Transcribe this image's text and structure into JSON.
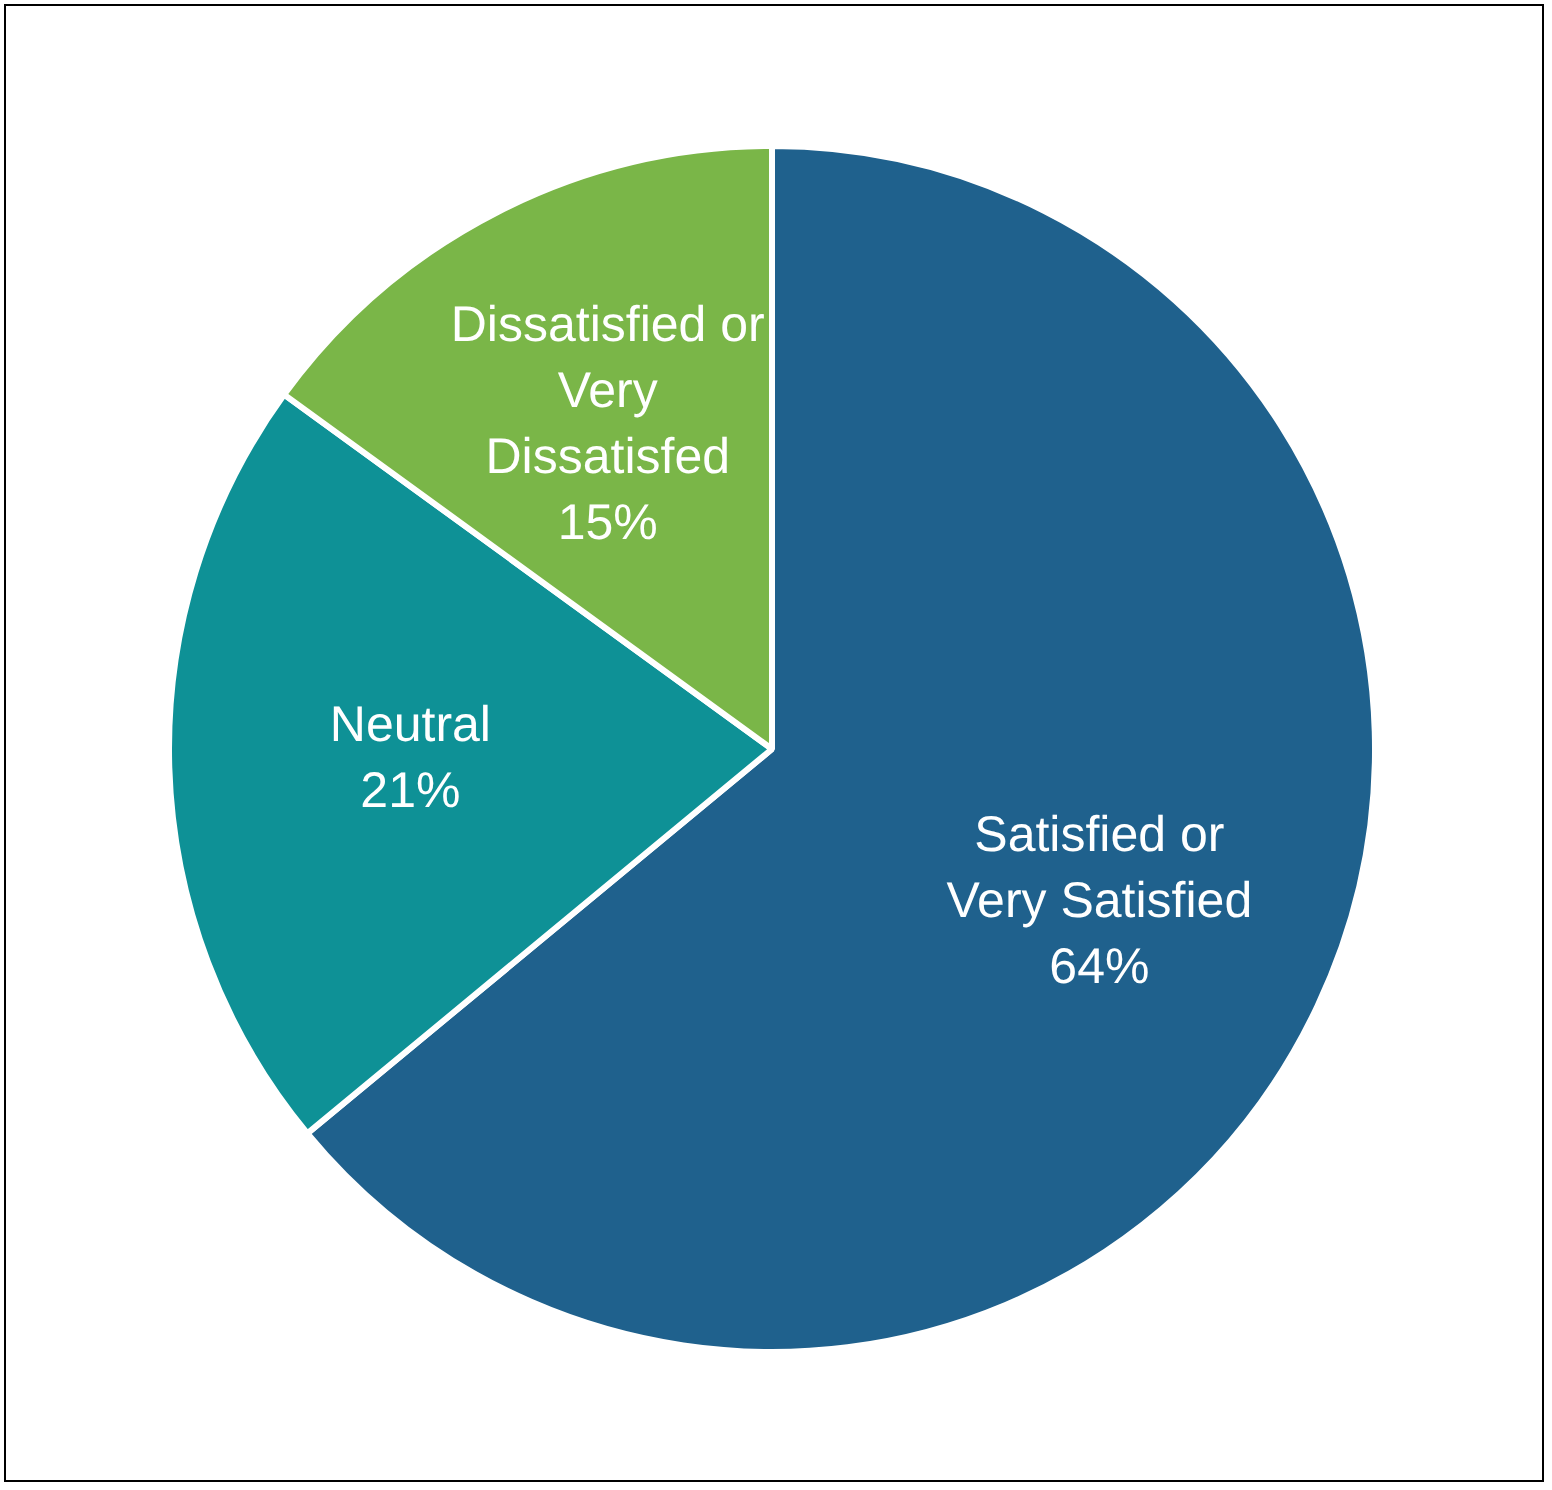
{
  "chart_data": {
    "type": "pie",
    "categories": [
      "Satisfied or Very Satisfied",
      "Neutral",
      "Dissatisfied or Very Dissatisfed"
    ],
    "values": [
      64,
      21,
      15
    ],
    "colors": [
      "#1f618d",
      "#0e9196",
      "#7ab648"
    ],
    "value_labels": [
      "64%",
      "21%",
      "15%"
    ]
  }
}
